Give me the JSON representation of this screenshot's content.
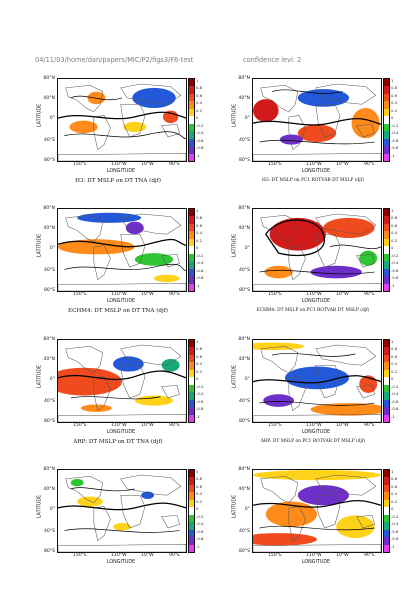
{
  "header": {
    "path": "04/11/03/home/dan/papers/MIC/P2/figs3/F6-test",
    "confidence": "confidence levi: 2"
  },
  "axes": {
    "ylabel": "LATITUDE",
    "xlabel": "LONGITUDE",
    "lat_ticks": [
      "80°N",
      "40°N",
      "0°",
      "40°S",
      "80°S"
    ],
    "lon_ticks": [
      "150°E",
      "110°W",
      "10°W",
      "90°E"
    ]
  },
  "colorbar": {
    "labels": [
      "1",
      "0.8",
      "0.6",
      "0.4",
      "0.2",
      "0",
      "-0.2",
      "-0.4",
      "-0.6",
      "-0.8",
      "-1"
    ],
    "colors": [
      "#8b0000",
      "#d31a1a",
      "#f04b1e",
      "#ff8c1a",
      "#ffd21a",
      "#ffffff",
      "#2ec733",
      "#18a87a",
      "#2358d9",
      "#6e2fc9",
      "#e63cf0"
    ]
  },
  "panels": [
    {
      "title": "H3: DT MSLP on DT TNA (djf)"
    },
    {
      "title": "H3: DT MSLP on PC1 ROTVAR DT MSLP (djf)"
    },
    {
      "title": "ECHM4: DT MSLP on DT TNA (djf)"
    },
    {
      "title": "ECHM4: DT MSLP on PC1 ROTVAR DT MSLP (djf)"
    },
    {
      "title": "ARP: DT MSLP on DT TNA (djf)"
    },
    {
      "title": "ARP: DT MSLP on PC1 ROTVAR DT MSLP (djf)"
    },
    {
      "title": ""
    },
    {
      "title": ""
    }
  ]
}
